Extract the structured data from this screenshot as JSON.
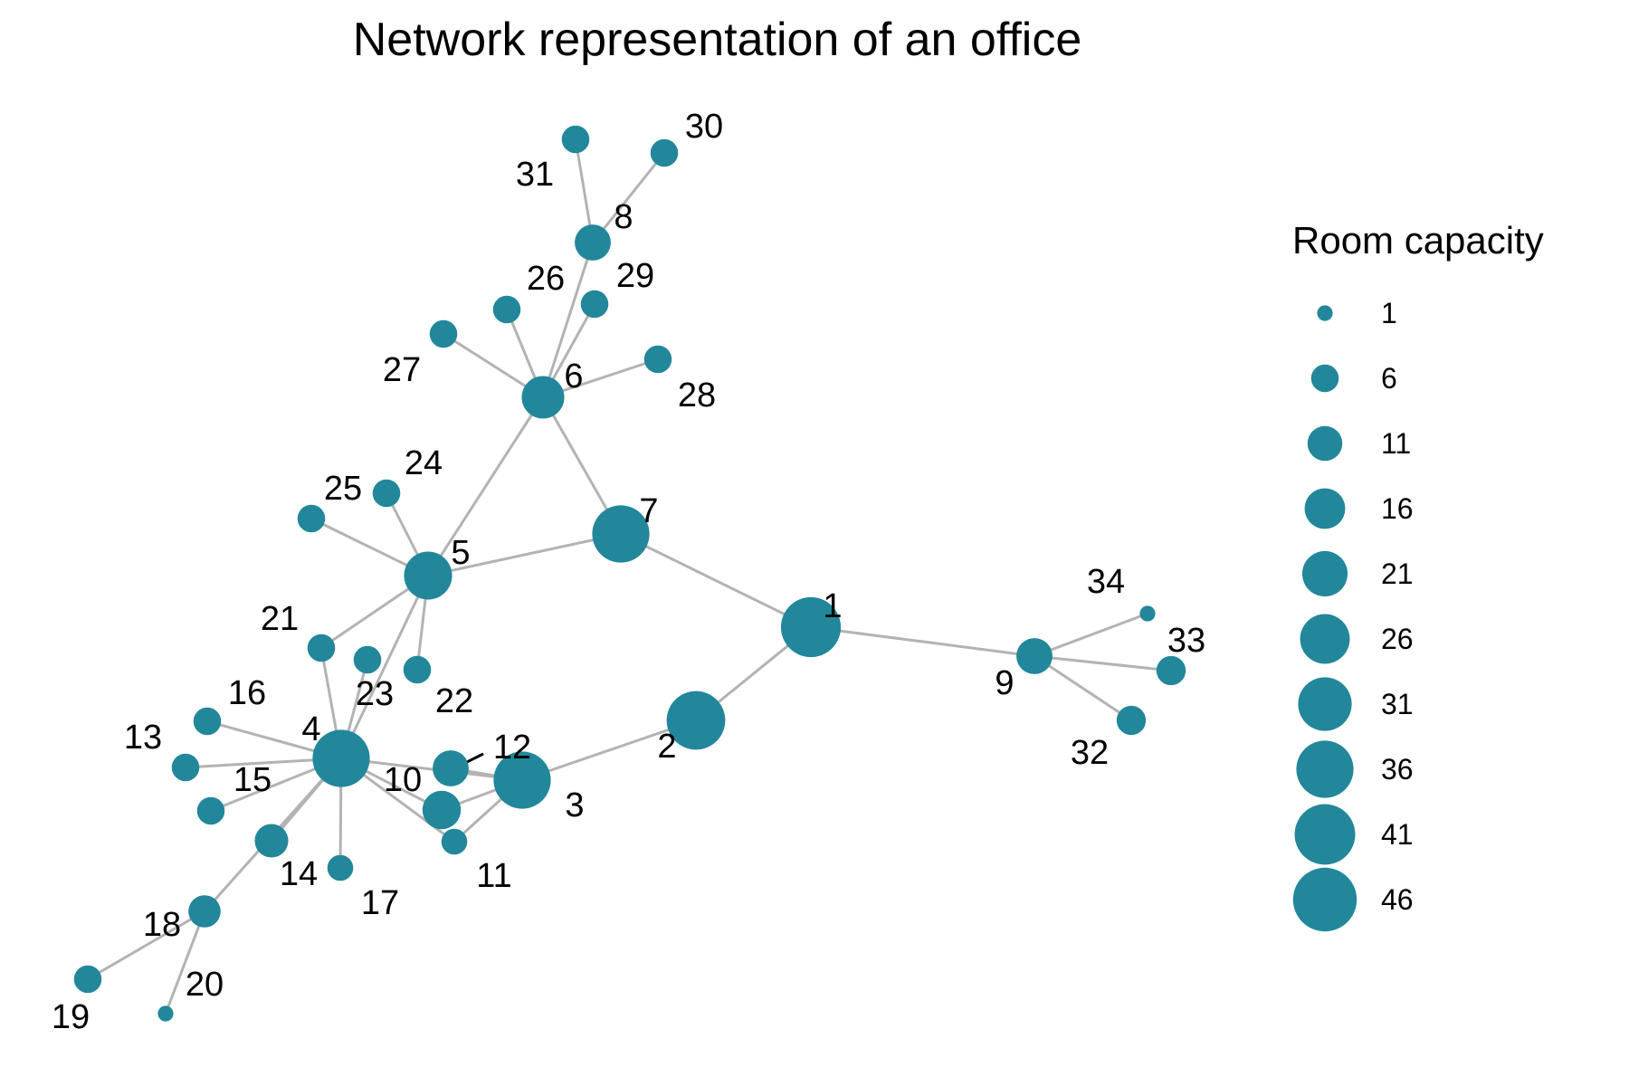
{
  "title": "Network representation of an office",
  "colors": {
    "node": "#22879A",
    "edge": "#B3B3B3",
    "leader": "#000000"
  },
  "legend": {
    "title": "Room capacity",
    "entries": [
      {
        "value": 1,
        "label": "1"
      },
      {
        "value": 6,
        "label": "6"
      },
      {
        "value": 11,
        "label": "11"
      },
      {
        "value": 16,
        "label": "16"
      },
      {
        "value": 21,
        "label": "21"
      },
      {
        "value": 26,
        "label": "26"
      },
      {
        "value": 31,
        "label": "31"
      },
      {
        "value": 36,
        "label": "36"
      },
      {
        "value": 41,
        "label": "41"
      },
      {
        "value": 46,
        "label": "46"
      }
    ]
  },
  "nodes": [
    {
      "id": "1",
      "capacity": 40
    },
    {
      "id": "2",
      "capacity": 38
    },
    {
      "id": "3",
      "capacity": 36
    },
    {
      "id": "4",
      "capacity": 36
    },
    {
      "id": "5",
      "capacity": 24
    },
    {
      "id": "6",
      "capacity": 18
    },
    {
      "id": "7",
      "capacity": 36
    },
    {
      "id": "8",
      "capacity": 12
    },
    {
      "id": "9",
      "capacity": 12
    },
    {
      "id": "10",
      "capacity": 14
    },
    {
      "id": "11",
      "capacity": 5
    },
    {
      "id": "12",
      "capacity": 12
    },
    {
      "id": "13",
      "capacity": 6
    },
    {
      "id": "14",
      "capacity": 10
    },
    {
      "id": "15",
      "capacity": 6
    },
    {
      "id": "16",
      "capacity": 6
    },
    {
      "id": "17",
      "capacity": 5
    },
    {
      "id": "18",
      "capacity": 9
    },
    {
      "id": "19",
      "capacity": 6
    },
    {
      "id": "20",
      "capacity": 1
    },
    {
      "id": "21",
      "capacity": 6
    },
    {
      "id": "22",
      "capacity": 6
    },
    {
      "id": "23",
      "capacity": 6
    },
    {
      "id": "24",
      "capacity": 6
    },
    {
      "id": "25",
      "capacity": 6
    },
    {
      "id": "26",
      "capacity": 6
    },
    {
      "id": "27",
      "capacity": 6
    },
    {
      "id": "28",
      "capacity": 6
    },
    {
      "id": "29",
      "capacity": 6
    },
    {
      "id": "30",
      "capacity": 6
    },
    {
      "id": "31",
      "capacity": 6
    },
    {
      "id": "32",
      "capacity": 7
    },
    {
      "id": "33",
      "capacity": 7
    },
    {
      "id": "34",
      "capacity": 1
    }
  ],
  "edges": [
    [
      "1",
      "2"
    ],
    [
      "1",
      "7"
    ],
    [
      "1",
      "9"
    ],
    [
      "2",
      "3"
    ],
    [
      "3",
      "10"
    ],
    [
      "3",
      "11"
    ],
    [
      "3",
      "12"
    ],
    [
      "3",
      "4"
    ],
    [
      "4",
      "5"
    ],
    [
      "4",
      "10"
    ],
    [
      "4",
      "11"
    ],
    [
      "4",
      "13"
    ],
    [
      "4",
      "14"
    ],
    [
      "4",
      "15"
    ],
    [
      "4",
      "16"
    ],
    [
      "4",
      "17"
    ],
    [
      "4",
      "18"
    ],
    [
      "4",
      "21"
    ],
    [
      "4",
      "23"
    ],
    [
      "5",
      "6"
    ],
    [
      "5",
      "7"
    ],
    [
      "5",
      "21"
    ],
    [
      "5",
      "22"
    ],
    [
      "5",
      "24"
    ],
    [
      "5",
      "25"
    ],
    [
      "6",
      "7"
    ],
    [
      "6",
      "8"
    ],
    [
      "6",
      "26"
    ],
    [
      "6",
      "27"
    ],
    [
      "6",
      "28"
    ],
    [
      "6",
      "29"
    ],
    [
      "8",
      "30"
    ],
    [
      "8",
      "31"
    ],
    [
      "9",
      "32"
    ],
    [
      "9",
      "33"
    ],
    [
      "9",
      "34"
    ],
    [
      "18",
      "19"
    ],
    [
      "18",
      "20"
    ]
  ]
}
